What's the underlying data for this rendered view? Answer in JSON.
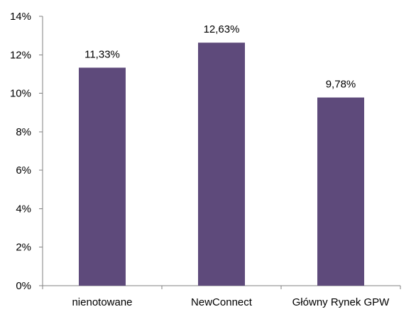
{
  "chart_data": {
    "type": "bar",
    "categories": [
      "nienotowane",
      "NewConnect",
      "Główny Rynek GPW"
    ],
    "values": [
      11.33,
      12.63,
      9.78
    ],
    "data_labels": [
      "11,33%",
      "12,63%",
      "9,78%"
    ],
    "ylim": [
      0,
      14
    ],
    "y_ticks": [
      0,
      2,
      4,
      6,
      8,
      10,
      12,
      14
    ],
    "y_tick_labels": [
      "0%",
      "2%",
      "4%",
      "6%",
      "8%",
      "10%",
      "12%",
      "14%"
    ],
    "grid": false,
    "legend": "none",
    "bar_color": "#5E4A7B",
    "axis_color": "#808080"
  }
}
